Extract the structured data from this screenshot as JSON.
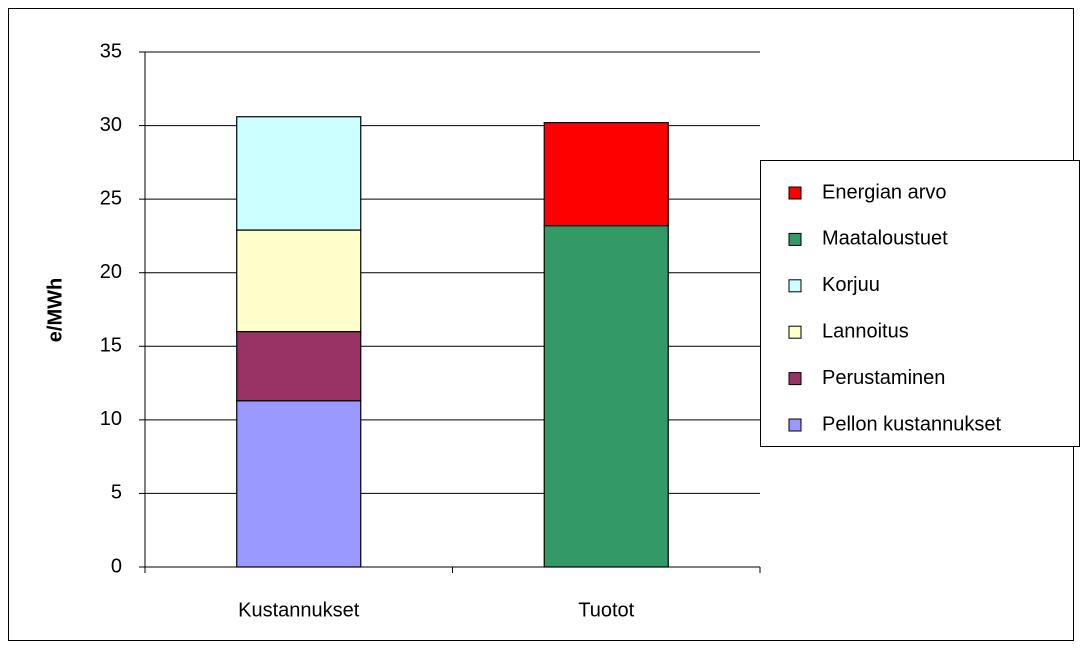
{
  "chart_data": {
    "type": "stacked-bar",
    "y_label": "e/MWh",
    "categories": [
      "Kustannukset",
      "Tuotot"
    ],
    "series": [
      {
        "name": "Pellon kustannukset",
        "color": "#9999ff",
        "values": [
          11.3,
          null
        ]
      },
      {
        "name": "Perustaminen",
        "color": "#993366",
        "values": [
          4.7,
          null
        ]
      },
      {
        "name": "Lannoitus",
        "color": "#ffffcc",
        "values": [
          6.9,
          null
        ]
      },
      {
        "name": "Korjuu",
        "color": "#ccffff",
        "values": [
          7.7,
          null
        ]
      },
      {
        "name": "Maataloustuet",
        "color": "#339966",
        "values": [
          null,
          23.2
        ]
      },
      {
        "name": "Energian arvo",
        "color": "#ff0000",
        "values": [
          null,
          7.0
        ]
      }
    ],
    "ylim": [
      0,
      35
    ],
    "yticks": [
      0,
      5,
      10,
      15,
      20,
      25,
      30,
      35
    ],
    "grid": true,
    "legend": "right"
  }
}
